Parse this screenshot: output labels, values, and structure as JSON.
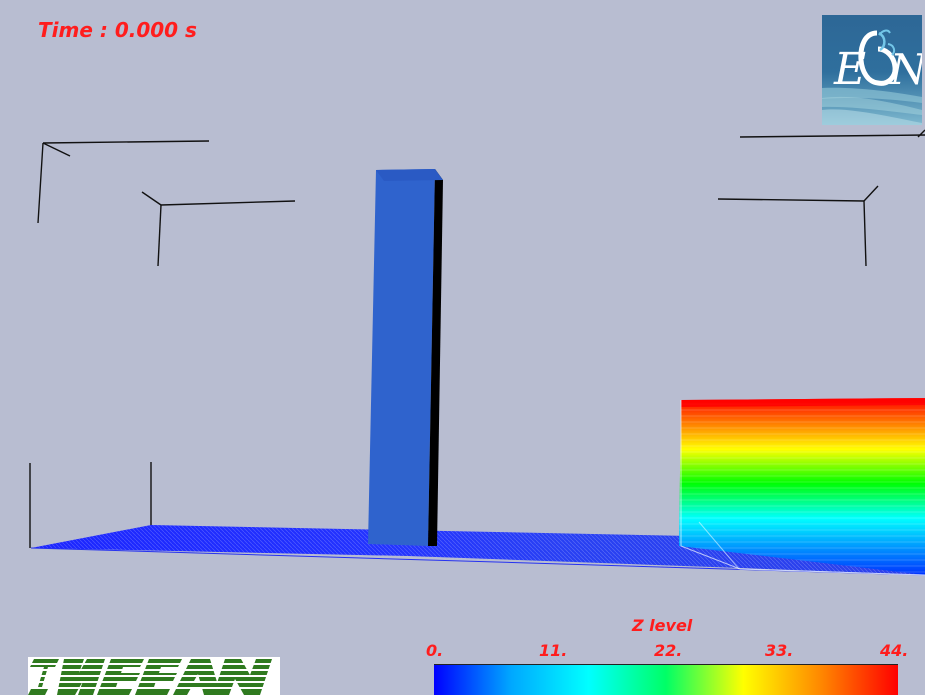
{
  "time": {
    "label": "Time : 0.000 s"
  },
  "legend": {
    "title": "Z level",
    "ticks": [
      "0.",
      "11.",
      "22.",
      "33.",
      "44."
    ],
    "gradient_colors": [
      "#0000ff",
      "#00a8ff",
      "#00ffff",
      "#00ff66",
      "#ffff00",
      "#ff8800",
      "#ff0000"
    ]
  },
  "logos": {
    "top_right": "ECN",
    "bottom_left": "INSEAN"
  },
  "colors": {
    "background": "#b8bdd1",
    "text_red": "#ff1d1d",
    "pillar_blue": "#2f63cd",
    "floor_blue": "#1f2df0"
  },
  "icons": {
    "scene_wireframe": "wireframe-icon"
  }
}
